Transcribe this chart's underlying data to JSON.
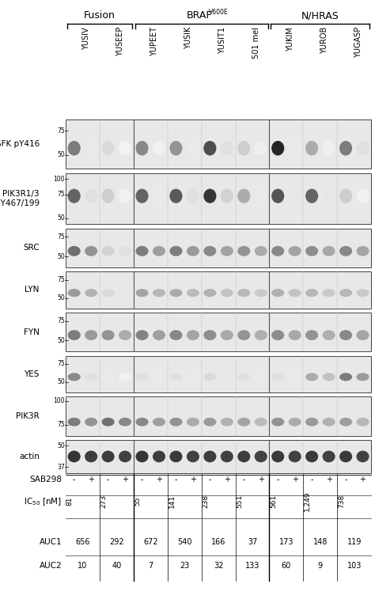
{
  "fig_width": 4.74,
  "fig_height": 7.57,
  "dpi": 100,
  "cell_lines": [
    "YUSIV",
    "YUSEEP",
    "YUPEET",
    "YUSIK",
    "YUSIT1",
    "501 mel",
    "YUKIM",
    "YUROB",
    "YUGASP"
  ],
  "group_info": [
    {
      "label": "Fusion",
      "superscript": "",
      "cols": [
        0,
        1
      ]
    },
    {
      "label": "BRAF",
      "superscript": "V600E",
      "cols": [
        2,
        3,
        4,
        5
      ]
    },
    {
      "label": "N/HRAS",
      "superscript": "",
      "cols": [
        6,
        7,
        8
      ]
    }
  ],
  "blot_labels": [
    "SFK pY416",
    "PIK3R1/3\npY467/199",
    "SRC",
    "LYN",
    "FYN",
    "YES",
    "PIK3R",
    "actin"
  ],
  "mw_per_blot": [
    [
      [
        "75",
        0.78
      ],
      [
        "50",
        0.28
      ]
    ],
    [
      [
        "100",
        0.88
      ],
      [
        "75",
        0.58
      ],
      [
        "50",
        0.12
      ]
    ],
    [
      [
        "75",
        0.78
      ],
      [
        "50",
        0.28
      ]
    ],
    [
      [
        "75",
        0.78
      ],
      [
        "50",
        0.28
      ]
    ],
    [
      [
        "75",
        0.78
      ],
      [
        "50",
        0.28
      ]
    ],
    [
      [
        "75",
        0.78
      ],
      [
        "50",
        0.28
      ]
    ],
    [
      [
        "100",
        0.88
      ],
      [
        "75",
        0.28
      ]
    ],
    [
      [
        "50",
        0.82
      ],
      [
        "37",
        0.18
      ]
    ]
  ],
  "ic50_values": [
    "81",
    "273",
    "55",
    "141",
    "238",
    "551",
    "561",
    "1,249",
    "738"
  ],
  "auc1_values": [
    "656",
    "292",
    "672",
    "540",
    "166",
    "37",
    "173",
    "148",
    "119"
  ],
  "auc2_values": [
    "10",
    "40",
    "7",
    "23",
    "32",
    "133",
    "60",
    "9",
    "103"
  ],
  "band_data": [
    [
      0.55,
      0.08,
      0.15,
      0.04,
      0.5,
      0.05,
      0.45,
      0.08,
      0.75,
      0.12,
      0.2,
      0.06,
      0.92,
      0.08,
      0.35,
      0.06,
      0.55,
      0.12
    ],
    [
      0.65,
      0.12,
      0.2,
      0.05,
      0.65,
      0.08,
      0.7,
      0.12,
      0.85,
      0.18,
      0.35,
      0.08,
      0.72,
      0.1,
      0.65,
      0.1,
      0.2,
      0.05
    ],
    [
      0.6,
      0.45,
      0.18,
      0.12,
      0.55,
      0.4,
      0.55,
      0.42,
      0.5,
      0.38,
      0.45,
      0.35,
      0.5,
      0.38,
      0.48,
      0.36,
      0.5,
      0.38
    ],
    [
      0.42,
      0.32,
      0.15,
      0.1,
      0.38,
      0.3,
      0.35,
      0.28,
      0.32,
      0.25,
      0.3,
      0.22,
      0.32,
      0.25,
      0.3,
      0.22,
      0.3,
      0.22
    ],
    [
      0.55,
      0.42,
      0.45,
      0.35,
      0.52,
      0.4,
      0.5,
      0.38,
      0.48,
      0.36,
      0.45,
      0.33,
      0.48,
      0.36,
      0.45,
      0.33,
      0.5,
      0.38
    ],
    [
      0.5,
      0.12,
      0.08,
      0.05,
      0.12,
      0.08,
      0.12,
      0.08,
      0.15,
      0.1,
      0.12,
      0.08,
      0.12,
      0.08,
      0.35,
      0.25,
      0.55,
      0.42
    ],
    [
      0.55,
      0.45,
      0.6,
      0.5,
      0.5,
      0.4,
      0.45,
      0.35,
      0.42,
      0.32,
      0.38,
      0.28,
      0.45,
      0.35,
      0.42,
      0.32,
      0.4,
      0.3
    ],
    [
      0.85,
      0.82,
      0.82,
      0.8,
      0.85,
      0.82,
      0.83,
      0.8,
      0.82,
      0.8,
      0.82,
      0.79,
      0.83,
      0.8,
      0.83,
      0.8,
      0.83,
      0.8
    ]
  ],
  "blot_heights_rel": [
    1.1,
    1.15,
    0.88,
    0.82,
    0.88,
    0.82,
    0.88,
    0.75
  ]
}
